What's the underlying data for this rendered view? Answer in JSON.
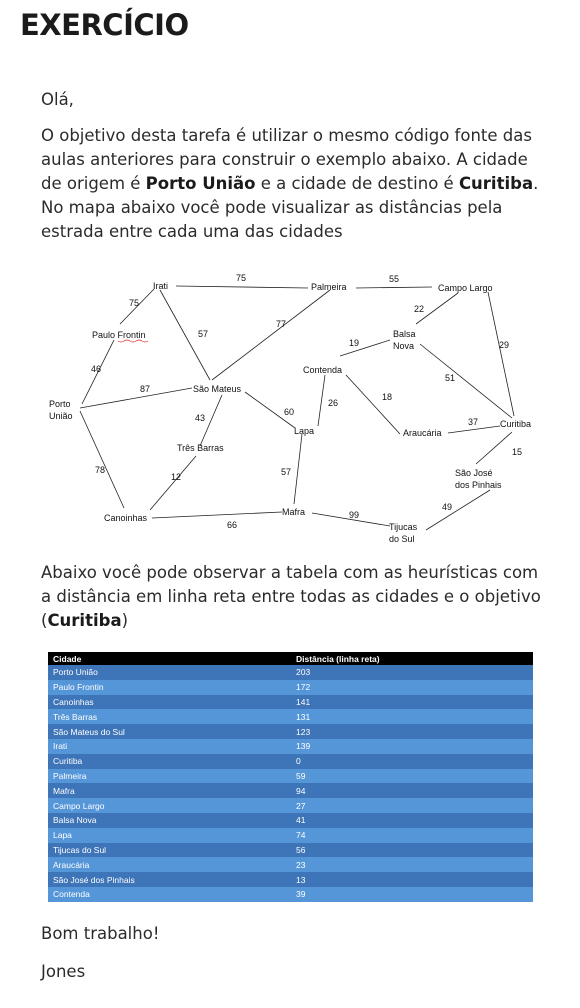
{
  "title": "EXERCÍCIO",
  "greeting": "Olá,",
  "intro": {
    "t1": "O objetivo desta tarefa é utilizar o mesmo código fonte das aulas anteriores para construir o exemplo abaixo. A cidade de origem é ",
    "origin": "Porto União",
    "t2": " e a cidade de destino é ",
    "dest": "Curitiba",
    "t3": ". No mapa abaixo você pode visualizar as distâncias pela estrada entre cada uma das cidades"
  },
  "map": {
    "cities": {
      "irati": "Irati",
      "palmeira": "Palmeira",
      "campo_largo": "Campo Largo",
      "paulo_frontin": "Paulo Frontin",
      "balsa_nova_1": "Balsa",
      "balsa_nova_2": "Nova",
      "porto_uniao_1": "Porto",
      "porto_uniao_2": "União",
      "sao_mateus": "São Mateus",
      "contenda": "Contenda",
      "lapa": "Lapa",
      "araucaria": "Araucária",
      "curitiba": "Curitiba",
      "tres_barras": "Três Barras",
      "sao_jose_1": "São José",
      "sao_jose_2": "dos Pinhais",
      "canoinhas": "Canoinhas",
      "mafra": "Mafra",
      "tijucas_1": "Tijucas",
      "tijucas_2": "do Sul"
    },
    "distances": {
      "irati_palmeira": "75",
      "palmeira_campo": "55",
      "irati_paulo": "75",
      "irati_saomateus": "57",
      "palmeira_saomateus": "77",
      "campo_balsa": "22",
      "campo_curitiba": "29",
      "balsa_contenda": "19",
      "balsa_curitiba": "51",
      "paulo_porto": "46",
      "porto_saomateus": "87",
      "contenda_lapa": "26",
      "contenda_araucaria": "18",
      "saomateus_lapa": "60",
      "saomateus_tres": "43",
      "araucaria_curitiba": "37",
      "curitiba_saojose": "15",
      "porto_canoinhas": "78",
      "tres_canoinhas": "12",
      "lapa_mafra": "57",
      "saojose_tijucas": "49",
      "mafra_tijucas": "99",
      "canoinhas_mafra": "66"
    }
  },
  "heuristics_text": {
    "t1": "Abaixo você pode observar a tabela com as heurísticas com a distância em linha reta entre todas as cidades e o objetivo (",
    "dest": "Curitiba",
    "t2": ")"
  },
  "table": {
    "headers": [
      "Cidade",
      "Distância (linha reta)"
    ],
    "rows": [
      [
        "Porto União",
        "203"
      ],
      [
        "Paulo Frontin",
        "172"
      ],
      [
        "Canoinhas",
        "141"
      ],
      [
        "Três Barras",
        "131"
      ],
      [
        "São Mateus do Sul",
        "123"
      ],
      [
        "Irati",
        "139"
      ],
      [
        "Curitiba",
        "0"
      ],
      [
        "Palmeira",
        "59"
      ],
      [
        "Mafra",
        "94"
      ],
      [
        "Campo Largo",
        "27"
      ],
      [
        "Balsa Nova",
        "41"
      ],
      [
        "Lapa",
        "74"
      ],
      [
        "Tijucas do Sul",
        "56"
      ],
      [
        "Araucária",
        "23"
      ],
      [
        "São José dos Pinhais",
        "13"
      ],
      [
        "Contenda",
        "39"
      ]
    ]
  },
  "closing": "Bom trabalho!",
  "signature": "Jones"
}
